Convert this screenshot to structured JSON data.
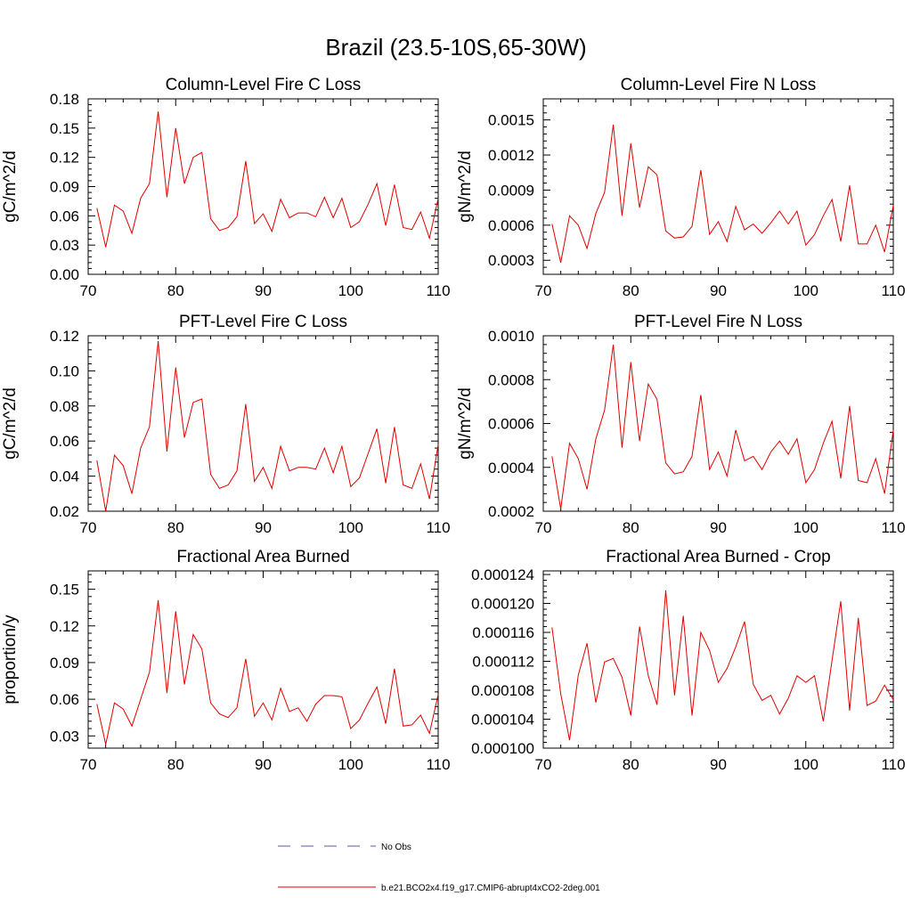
{
  "title": "Brazil (23.5-10S,65-30W)",
  "legend": {
    "placement": "bottom-center",
    "items": [
      {
        "label": "No Obs",
        "color": "#5a5aaa",
        "style": "dashed"
      },
      {
        "label": "b.e21.BCO2x4.f19_g17.CMIP6-abrupt4xCO2-2deg.001",
        "color": "#e00000",
        "style": "solid"
      }
    ]
  },
  "chart_data": [
    {
      "type": "line",
      "title": "Column-Level Fire C Loss",
      "ylabel": "gC/m^2/d",
      "xlim": [
        70,
        110
      ],
      "ylim": [
        0,
        0.18
      ],
      "xticks": [
        70,
        80,
        90,
        100,
        110
      ],
      "yticks": [
        0,
        0.03,
        0.06,
        0.09,
        0.12,
        0.15,
        0.18
      ],
      "ytick_labels": [
        "0.00",
        "0.03",
        "0.06",
        "0.09",
        "0.12",
        "0.15",
        "0.18"
      ],
      "series": [
        {
          "color": "#e00000",
          "x": [
            71,
            72,
            73,
            74,
            75,
            76,
            77,
            78,
            79,
            80,
            81,
            82,
            83,
            84,
            85,
            86,
            87,
            88,
            89,
            90,
            91,
            92,
            93,
            94,
            95,
            96,
            97,
            98,
            99,
            100,
            101,
            102,
            103,
            104,
            105,
            106,
            107,
            108,
            109,
            110
          ],
          "values": [
            0.068,
            0.028,
            0.071,
            0.065,
            0.042,
            0.078,
            0.093,
            0.167,
            0.079,
            0.15,
            0.093,
            0.12,
            0.125,
            0.057,
            0.045,
            0.048,
            0.059,
            0.116,
            0.052,
            0.062,
            0.044,
            0.077,
            0.058,
            0.063,
            0.063,
            0.059,
            0.079,
            0.058,
            0.078,
            0.048,
            0.054,
            0.072,
            0.093,
            0.05,
            0.092,
            0.048,
            0.046,
            0.064,
            0.037,
            0.078
          ]
        }
      ]
    },
    {
      "type": "line",
      "title": "Column-Level Fire N Loss",
      "ylabel": "gN/m^2/d",
      "xlim": [
        70,
        110
      ],
      "ylim": [
        0.00018,
        0.00168
      ],
      "xticks": [
        70,
        80,
        90,
        100,
        110
      ],
      "yticks": [
        0.0003,
        0.0006,
        0.0009,
        0.0012,
        0.0015
      ],
      "ytick_labels": [
        "0.0003",
        "0.0006",
        "0.0009",
        "0.0012",
        "0.0015"
      ],
      "series": [
        {
          "color": "#e00000",
          "x": [
            71,
            72,
            73,
            74,
            75,
            76,
            77,
            78,
            79,
            80,
            81,
            82,
            83,
            84,
            85,
            86,
            87,
            88,
            89,
            90,
            91,
            92,
            93,
            94,
            95,
            96,
            97,
            98,
            99,
            100,
            101,
            102,
            103,
            104,
            105,
            106,
            107,
            108,
            109,
            110
          ],
          "values": [
            0.00061,
            0.00028,
            0.00068,
            0.0006,
            0.0004,
            0.0007,
            0.00088,
            0.00146,
            0.00068,
            0.0013,
            0.00075,
            0.0011,
            0.00103,
            0.00055,
            0.00049,
            0.0005,
            0.00059,
            0.00107,
            0.00052,
            0.00063,
            0.00046,
            0.00076,
            0.00056,
            0.00061,
            0.00053,
            0.00062,
            0.00072,
            0.00061,
            0.00072,
            0.00043,
            0.00052,
            0.00068,
            0.00082,
            0.00046,
            0.00094,
            0.00044,
            0.00044,
            0.0006,
            0.00037,
            0.00077
          ]
        }
      ]
    },
    {
      "type": "line",
      "title": "PFT-Level Fire C Loss",
      "ylabel": "gC/m^2/d",
      "xlim": [
        70,
        110
      ],
      "ylim": [
        0.02,
        0.12
      ],
      "xticks": [
        70,
        80,
        90,
        100,
        110
      ],
      "yticks": [
        0.02,
        0.04,
        0.06,
        0.08,
        0.1,
        0.12
      ],
      "ytick_labels": [
        "0.02",
        "0.04",
        "0.06",
        "0.08",
        "0.10",
        "0.12"
      ],
      "series": [
        {
          "color": "#e00000",
          "x": [
            71,
            72,
            73,
            74,
            75,
            76,
            77,
            78,
            79,
            80,
            81,
            82,
            83,
            84,
            85,
            86,
            87,
            88,
            89,
            90,
            91,
            92,
            93,
            94,
            95,
            96,
            97,
            98,
            99,
            100,
            101,
            102,
            103,
            104,
            105,
            106,
            107,
            108,
            109,
            110
          ],
          "values": [
            0.049,
            0.02,
            0.052,
            0.046,
            0.03,
            0.056,
            0.068,
            0.117,
            0.054,
            0.102,
            0.062,
            0.082,
            0.084,
            0.041,
            0.033,
            0.035,
            0.043,
            0.081,
            0.037,
            0.045,
            0.033,
            0.057,
            0.043,
            0.045,
            0.045,
            0.044,
            0.056,
            0.042,
            0.057,
            0.034,
            0.039,
            0.053,
            0.067,
            0.036,
            0.068,
            0.035,
            0.033,
            0.047,
            0.027,
            0.058
          ]
        }
      ]
    },
    {
      "type": "line",
      "title": "PFT-Level Fire N Loss",
      "ylabel": "gN/m^2/d",
      "xlim": [
        70,
        110
      ],
      "ylim": [
        0.0002,
        0.001
      ],
      "xticks": [
        70,
        80,
        90,
        100,
        110
      ],
      "yticks": [
        0.0002,
        0.0004,
        0.0006,
        0.0008,
        0.001
      ],
      "ytick_labels": [
        "0.0002",
        "0.0004",
        "0.0006",
        "0.0008",
        "0.0010"
      ],
      "series": [
        {
          "color": "#e00000",
          "x": [
            71,
            72,
            73,
            74,
            75,
            76,
            77,
            78,
            79,
            80,
            81,
            82,
            83,
            84,
            85,
            86,
            87,
            88,
            89,
            90,
            91,
            92,
            93,
            94,
            95,
            96,
            97,
            98,
            99,
            100,
            101,
            102,
            103,
            104,
            105,
            106,
            107,
            108,
            109,
            110
          ],
          "values": [
            0.00045,
            0.00021,
            0.00051,
            0.00044,
            0.0003,
            0.00053,
            0.00066,
            0.00096,
            0.00049,
            0.00088,
            0.00052,
            0.00078,
            0.00071,
            0.00042,
            0.00037,
            0.00038,
            0.00045,
            0.00073,
            0.00039,
            0.00047,
            0.00036,
            0.00057,
            0.00043,
            0.00045,
            0.00039,
            0.00047,
            0.00052,
            0.00046,
            0.00053,
            0.00033,
            0.00039,
            0.00051,
            0.00061,
            0.00035,
            0.00068,
            0.00034,
            0.00033,
            0.00044,
            0.00028,
            0.00057
          ]
        }
      ]
    },
    {
      "type": "line",
      "title": "Fractional Area Burned",
      "ylabel": "proportion/y",
      "xlim": [
        70,
        110
      ],
      "ylim": [
        0.02,
        0.165
      ],
      "xticks": [
        70,
        80,
        90,
        100,
        110
      ],
      "yticks": [
        0.03,
        0.06,
        0.09,
        0.12,
        0.15
      ],
      "ytick_labels": [
        "0.03",
        "0.06",
        "0.09",
        "0.12",
        "0.15"
      ],
      "series": [
        {
          "color": "#e00000",
          "x": [
            71,
            72,
            73,
            74,
            75,
            76,
            77,
            78,
            79,
            80,
            81,
            82,
            83,
            84,
            85,
            86,
            87,
            88,
            89,
            90,
            91,
            92,
            93,
            94,
            95,
            96,
            97,
            98,
            99,
            100,
            101,
            102,
            103,
            104,
            105,
            106,
            107,
            108,
            109,
            110
          ],
          "values": [
            0.056,
            0.023,
            0.057,
            0.052,
            0.038,
            0.06,
            0.082,
            0.141,
            0.065,
            0.132,
            0.072,
            0.113,
            0.101,
            0.057,
            0.048,
            0.045,
            0.053,
            0.093,
            0.046,
            0.057,
            0.043,
            0.069,
            0.05,
            0.053,
            0.042,
            0.056,
            0.063,
            0.063,
            0.062,
            0.036,
            0.043,
            0.057,
            0.07,
            0.04,
            0.085,
            0.038,
            0.039,
            0.047,
            0.032,
            0.064
          ]
        }
      ]
    },
    {
      "type": "line",
      "title": "Fractional Area Burned - Crop",
      "ylabel": "",
      "xlim": [
        70,
        110
      ],
      "ylim": [
        0.0001,
        0.0001245
      ],
      "xticks": [
        70,
        80,
        90,
        100,
        110
      ],
      "yticks": [
        0.0001,
        0.000104,
        0.000108,
        0.000112,
        0.000116,
        0.00012,
        0.000124
      ],
      "ytick_labels": [
        "0.000100",
        "0.000104",
        "0.000108",
        "0.000112",
        "0.000116",
        "0.000120",
        "0.000124"
      ],
      "series": [
        {
          "color": "#e00000",
          "x": [
            71,
            72,
            73,
            74,
            75,
            76,
            77,
            78,
            79,
            80,
            81,
            82,
            83,
            84,
            85,
            86,
            87,
            88,
            89,
            90,
            91,
            92,
            93,
            94,
            95,
            96,
            97,
            98,
            99,
            100,
            101,
            102,
            103,
            104,
            105,
            106,
            107,
            108,
            109,
            110
          ],
          "values": [
            0.0001167,
            0.0001075,
            0.0001011,
            0.0001101,
            0.0001145,
            0.0001063,
            0.0001119,
            0.0001124,
            0.0001098,
            0.0001045,
            0.0001168,
            0.00011,
            0.000106,
            0.0001218,
            0.0001073,
            0.0001183,
            0.0001045,
            0.000116,
            0.0001135,
            0.0001091,
            0.000111,
            0.000114,
            0.0001175,
            0.0001088,
            0.0001066,
            0.0001073,
            0.0001047,
            0.0001069,
            0.00011,
            0.0001091,
            0.00011,
            0.0001037,
            0.0001121,
            0.0001203,
            0.0001052,
            0.000118,
            0.0001059,
            0.0001065,
            0.0001087,
            0.0001067
          ]
        }
      ]
    }
  ]
}
